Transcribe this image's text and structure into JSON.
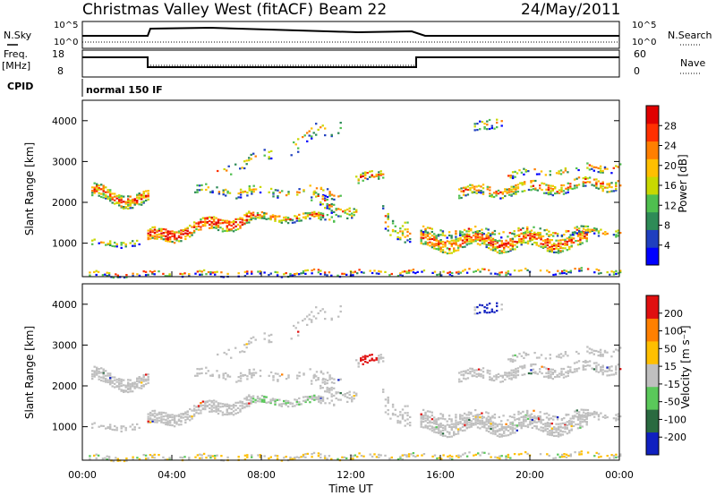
{
  "header": {
    "station": "Christmas Valley West (fitACF)",
    "beam": "Beam 22",
    "date": "24/May/2011"
  },
  "noise_panel": {
    "left_label": "N.Sky",
    "right_label": "N.Search",
    "left_top_tick": "10^5",
    "left_bottom_tick": "10^0",
    "right_top_tick": "10^5",
    "right_bottom_tick": "10^0"
  },
  "freq_panel": {
    "left_label_line1": "Freq.",
    "left_label_line2": "[MHz]",
    "right_label": "Nave",
    "left_ticks": [
      "18",
      "8"
    ],
    "right_ticks": [
      "60",
      "0"
    ]
  },
  "cpid_panel": {
    "label": "CPID",
    "value": "normal 150 IF"
  },
  "colors": {
    "power_scale": [
      "#0000ff",
      "#1f3fbf",
      "#2e8b57",
      "#4fbf4f",
      "#c8d800",
      "#ffbf00",
      "#ff7f00",
      "#ff3000",
      "#e00000"
    ],
    "velocity_scale": [
      "#1020c0",
      "#2a6a40",
      "#5ac85a",
      "#bfbfbf",
      "#ffbf00",
      "#ff8000",
      "#e01010"
    ]
  },
  "chart_data": [
    {
      "type": "heatmap",
      "name": "Power",
      "ylabel": "Slant Range [km]",
      "colorbar_label": "Power [dB]",
      "colorbar_ticks": [
        "28",
        "24",
        "20",
        "16",
        "12",
        "8",
        "4"
      ],
      "yticks": [
        "4000",
        "3000",
        "2000",
        "1000"
      ],
      "xlim_hours": [
        0,
        24
      ],
      "ylim_km": [
        180,
        4500
      ]
    },
    {
      "type": "heatmap",
      "name": "Velocity",
      "ylabel": "Slant Range [km]",
      "xlabel": "Time UT",
      "colorbar_label": "Velocity [m s⁻¹]",
      "colorbar_ticks": [
        "200",
        "100",
        "50",
        "15",
        "-15",
        "-50",
        "-100",
        "-200"
      ],
      "yticks": [
        "4000",
        "3000",
        "2000",
        "1000"
      ],
      "xticks": [
        "00:00",
        "04:00",
        "08:00",
        "12:00",
        "16:00",
        "20:00",
        "00:00"
      ],
      "xlim_hours": [
        0,
        24
      ],
      "ylim_km": [
        180,
        4500
      ]
    }
  ]
}
